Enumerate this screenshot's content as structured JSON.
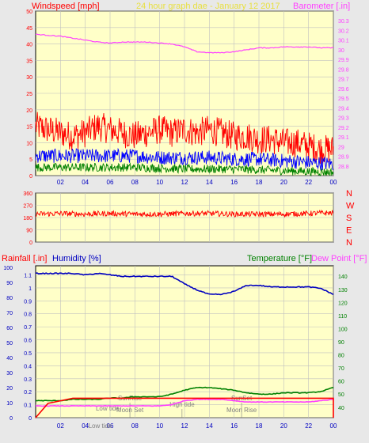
{
  "colors": {
    "background": "#e8e8e8",
    "plot_bg": "#ffffc8",
    "grid": "#c0c0c0",
    "title": "#e8e040",
    "wind_high": "#ff0000",
    "wind_avg": "#0000ff",
    "wind_low": "#008000",
    "barometer": "#ff40ff",
    "direction": "#ff0000",
    "rain": "#ff0000",
    "humidity": "#0000c0",
    "temperature": "#008000",
    "dewpoint": "#ff40ff",
    "event_text": "#808080",
    "compass": "#ff0000"
  },
  "chart_data": [
    {
      "id": "wind-baro",
      "type": "line",
      "title": "24 hour graph dae - January 12 2017",
      "ylabel_left": "Windspeed [mph]",
      "ylabel_right": "Barometer [.in]",
      "x_tick_labels": [
        "02",
        "04",
        "06",
        "08",
        "10",
        "12",
        "14",
        "16",
        "18",
        "20",
        "22",
        "00"
      ],
      "xlim": [
        0,
        24
      ],
      "ylim_left": [
        0,
        50
      ],
      "left_ticks": [
        "0",
        "5",
        "10",
        "15",
        "20",
        "25",
        "30",
        "35",
        "40",
        "45",
        "50"
      ],
      "ylim_right": [
        28.7,
        30.4
      ],
      "right_ticks": [
        "28.8",
        "28.9",
        "29",
        "29.1",
        "29.2",
        "29.3",
        "29.4",
        "29.5",
        "29.6",
        "29.7",
        "29.8",
        "29.9",
        "30",
        "30.1",
        "30.2",
        "30.3"
      ],
      "grid": true,
      "barometer": {
        "x": [
          0,
          1,
          2,
          3,
          4,
          5,
          6,
          7,
          8,
          9,
          10,
          11,
          12,
          13,
          14,
          15,
          16,
          17,
          18,
          19,
          20,
          21,
          22,
          23,
          24
        ],
        "y": [
          30.16,
          30.15,
          30.14,
          30.12,
          30.1,
          30.08,
          30.07,
          30.08,
          30.08,
          30.08,
          30.07,
          30.06,
          30.03,
          29.98,
          29.97,
          29.97,
          29.98,
          30.0,
          30.02,
          30.02,
          30.03,
          30.03,
          30.03,
          30.02,
          30.02
        ]
      },
      "wind_high_envelope": {
        "x": [
          0,
          1,
          2,
          3,
          4,
          5,
          6,
          7,
          8,
          9,
          10,
          11,
          12,
          13,
          14,
          15,
          16,
          17,
          18,
          19,
          20,
          21,
          22,
          23,
          24
        ],
        "y": [
          15,
          14,
          13,
          12,
          13,
          15,
          14,
          13,
          12,
          13,
          14,
          13,
          14,
          13,
          14,
          13,
          12,
          12,
          11,
          11,
          10,
          10,
          9,
          8,
          8
        ]
      },
      "wind_avg_envelope": {
        "x": [
          0,
          2,
          4,
          6,
          8,
          10,
          12,
          14,
          16,
          18,
          20,
          22,
          24
        ],
        "y": [
          6,
          6,
          6,
          6,
          6,
          5.5,
          5.5,
          5.5,
          5,
          5,
          4.5,
          4,
          3.5
        ]
      },
      "wind_low_envelope": {
        "x": [
          0,
          4,
          8,
          12,
          16,
          20,
          24
        ],
        "y": [
          2.5,
          2.5,
          2.5,
          2,
          2,
          1.5,
          1
        ]
      }
    },
    {
      "id": "direction",
      "type": "line",
      "ylim": [
        0,
        360
      ],
      "left_ticks": [
        "0",
        "90",
        "180",
        "270",
        "360"
      ],
      "compass_labels": [
        "N",
        "W",
        "S",
        "E",
        "N"
      ],
      "x": [
        0,
        2,
        4,
        6,
        8,
        10,
        12,
        14,
        16,
        18,
        20,
        22,
        24
      ],
      "y": [
        205,
        210,
        205,
        210,
        205,
        205,
        210,
        210,
        205,
        205,
        205,
        210,
        215
      ]
    },
    {
      "id": "temp-hum-rain",
      "type": "line",
      "ylabel_left_1": "Rainfall [.in]",
      "ylabel_left_2": "Humidity [%]",
      "ylabel_right_1": "Temperature [°F]",
      "ylabel_right_2": "Dew Point [°F]",
      "xlim": [
        0,
        24
      ],
      "humidity_ticks": [
        "0",
        "10",
        "20",
        "30",
        "40",
        "50",
        "60",
        "70",
        "80",
        "90",
        "100"
      ],
      "rain_ticks": [
        "0",
        "0.1",
        "0.2",
        "0.3",
        "0.4",
        "0.5",
        "0.6",
        "0.7",
        "0.8",
        "0.9",
        "1",
        "1.1"
      ],
      "rain_ylim": [
        0,
        1.17
      ],
      "temp_ticks": [
        "40",
        "50",
        "60",
        "70",
        "80",
        "90",
        "100",
        "110",
        "120",
        "130",
        "140"
      ],
      "temp_ylim": [
        32,
        148
      ],
      "humidity": {
        "x": [
          0,
          1,
          2,
          3,
          4,
          5,
          6,
          7,
          8,
          9,
          10,
          11,
          12,
          13,
          14,
          15,
          16,
          17,
          18,
          19,
          20,
          21,
          22,
          23,
          24
        ],
        "y": [
          96,
          96,
          96,
          96,
          95,
          96,
          95,
          94,
          94,
          94,
          94,
          94,
          89,
          85,
          82,
          82,
          84,
          88,
          88,
          87,
          87,
          87,
          87,
          86,
          82
        ]
      },
      "temperature": {
        "x": [
          0,
          1,
          2,
          3,
          4,
          5,
          6,
          7,
          8,
          9,
          10,
          11,
          12,
          13,
          14,
          15,
          16,
          17,
          18,
          19,
          20,
          21,
          22,
          23,
          24
        ],
        "y": [
          45,
          45,
          45,
          46,
          46,
          46,
          47,
          47,
          48,
          48,
          48,
          50,
          53,
          55,
          55,
          54,
          53,
          51,
          50,
          50,
          51,
          51,
          51,
          52,
          55
        ]
      },
      "dewpoint": {
        "x": [
          0,
          1,
          2,
          3,
          4,
          5,
          6,
          7,
          8,
          9,
          10,
          11,
          12,
          13,
          14,
          15,
          16,
          17,
          18,
          19,
          20,
          21,
          22,
          23,
          24
        ],
        "y": [
          41,
          41,
          41,
          41,
          41,
          41,
          41,
          41,
          41,
          41,
          41,
          42,
          45,
          46,
          46,
          46,
          45,
          44,
          44,
          44,
          44,
          44,
          44,
          45,
          46
        ]
      },
      "rainfall": {
        "x": [
          0,
          1,
          3,
          24
        ],
        "y": [
          0,
          0.11,
          0.15,
          0.15
        ]
      },
      "events": [
        {
          "label": "Low tide",
          "hour": 5.8,
          "row": "low"
        },
        {
          "label": "Low tide",
          "hour": 5.2,
          "row": "bottom"
        },
        {
          "label": "SunRise",
          "hour": 7.6,
          "row": "top"
        },
        {
          "label": "Moon Set",
          "hour": 7.6,
          "row": "mid"
        },
        {
          "label": "High tide",
          "hour": 11.8,
          "row": "low2"
        },
        {
          "label": "SunSet",
          "hour": 16.6,
          "row": "top"
        },
        {
          "label": "Moon Rise",
          "hour": 16.6,
          "row": "mid"
        }
      ]
    }
  ]
}
